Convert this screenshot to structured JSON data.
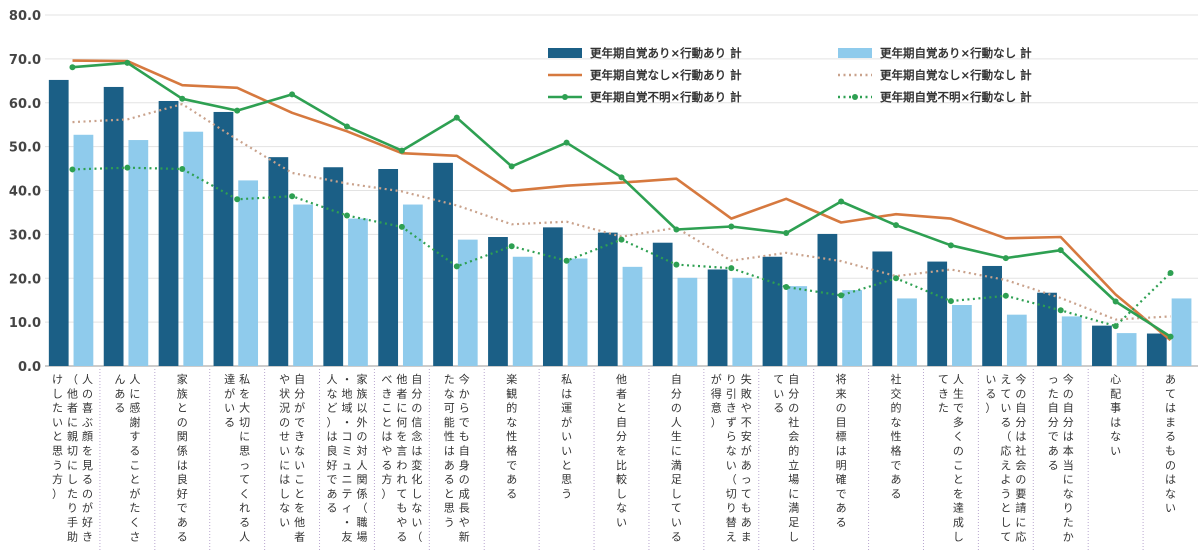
{
  "chart_data": {
    "type": "bar",
    "title": "",
    "xlabel": "",
    "ylabel": "",
    "ylim": [
      0,
      80
    ],
    "yticks": [
      "0.0",
      "10.0",
      "20.0",
      "30.0",
      "40.0",
      "50.0",
      "60.0",
      "70.0",
      "80.0"
    ],
    "grid": true,
    "legend_position": "top-right",
    "categories": [
      "人の喜ぶ顔を見るのが好き（他者に親切にしたり手助けしたいと思う方）",
      "人に感謝することがたくさんある",
      "家族との関係は良好である",
      "私を大切に思ってくれる人達がいる",
      "自分ができないことを他者や状況のせいにはしない",
      "家族以外の対人関係（職場・地域・コミュニティ・友人など）は良好である",
      "自分の信念は変化しない（他者に何を言われてもやるべきことはやる方）",
      "今からでも自身の成長や新たな可能性はあると思う",
      "楽観的な性格である",
      "私は運がいいと思う",
      "他者と自分を比較しない",
      "自分の人生に満足している",
      "失敗や不安があってもあまり引きずらない（切り替えが得意）",
      "自分の社会的立場に満足している",
      "将来の目標は明確である",
      "社交的な性格である",
      "人生で多くのことを達成してきた",
      "今の自分は社会の要請に応えている（応えようとしている）",
      "今の自分は本当になりたかった自分である",
      "心配事はない",
      "あてはまるものはない"
    ],
    "series": [
      {
        "name": "更年期自覚あり×行動あり 計",
        "kind": "bar",
        "color": "#1b5f86",
        "values": [
          65.2,
          63.6,
          60.4,
          57.9,
          47.6,
          45.3,
          44.9,
          46.3,
          29.4,
          31.6,
          30.4,
          28.1,
          22.0,
          24.9,
          30.1,
          26.1,
          23.8,
          22.8,
          16.7,
          9.2,
          7.4
        ]
      },
      {
        "name": "更年期自覚あり×行動なし 計",
        "kind": "bar",
        "color": "#8fcbec",
        "values": [
          52.7,
          51.5,
          53.4,
          42.3,
          36.8,
          33.6,
          36.8,
          28.8,
          24.9,
          24.5,
          22.6,
          20.1,
          20.1,
          18.2,
          17.3,
          15.4,
          13.9,
          11.7,
          11.3,
          7.5,
          15.4
        ]
      },
      {
        "name": "更年期自覚なし×行動あり 計",
        "kind": "line",
        "color": "#d6793f",
        "values": [
          69.6,
          69.5,
          64.0,
          63.4,
          57.7,
          53.5,
          48.5,
          47.9,
          39.9,
          41.1,
          41.8,
          42.7,
          33.6,
          38.1,
          32.7,
          34.6,
          33.6,
          29.1,
          29.4,
          16.3,
          5.9
        ]
      },
      {
        "name": "更年期自覚なし×行動なし 計",
        "kind": "dotted-line",
        "color": "#c9a28c",
        "values": [
          55.6,
          56.2,
          59.7,
          51.6,
          44.0,
          41.6,
          39.8,
          36.6,
          32.3,
          32.9,
          29.5,
          31.5,
          24.0,
          25.8,
          23.9,
          20.5,
          22.0,
          19.6,
          15.5,
          10.6,
          11.3
        ]
      },
      {
        "name": "更年期自覚不明×行動あり 計",
        "kind": "line-marker",
        "color": "#2ea052",
        "values": [
          68.1,
          69.1,
          60.9,
          58.2,
          61.9,
          54.6,
          49.1,
          56.6,
          45.5,
          50.9,
          43.0,
          31.1,
          31.8,
          30.3,
          37.5,
          32.1,
          27.5,
          24.6,
          26.4,
          14.7,
          6.7
        ]
      },
      {
        "name": "更年期自覚不明×行動なし 計",
        "kind": "dotted-line-marker",
        "color": "#2ea052",
        "values": [
          44.8,
          45.2,
          44.9,
          38.0,
          38.7,
          34.3,
          31.7,
          22.7,
          27.3,
          24.0,
          28.8,
          23.1,
          22.3,
          18.0,
          16.1,
          20.0,
          14.8,
          16.0,
          12.7,
          9.1,
          21.2
        ]
      }
    ]
  }
}
